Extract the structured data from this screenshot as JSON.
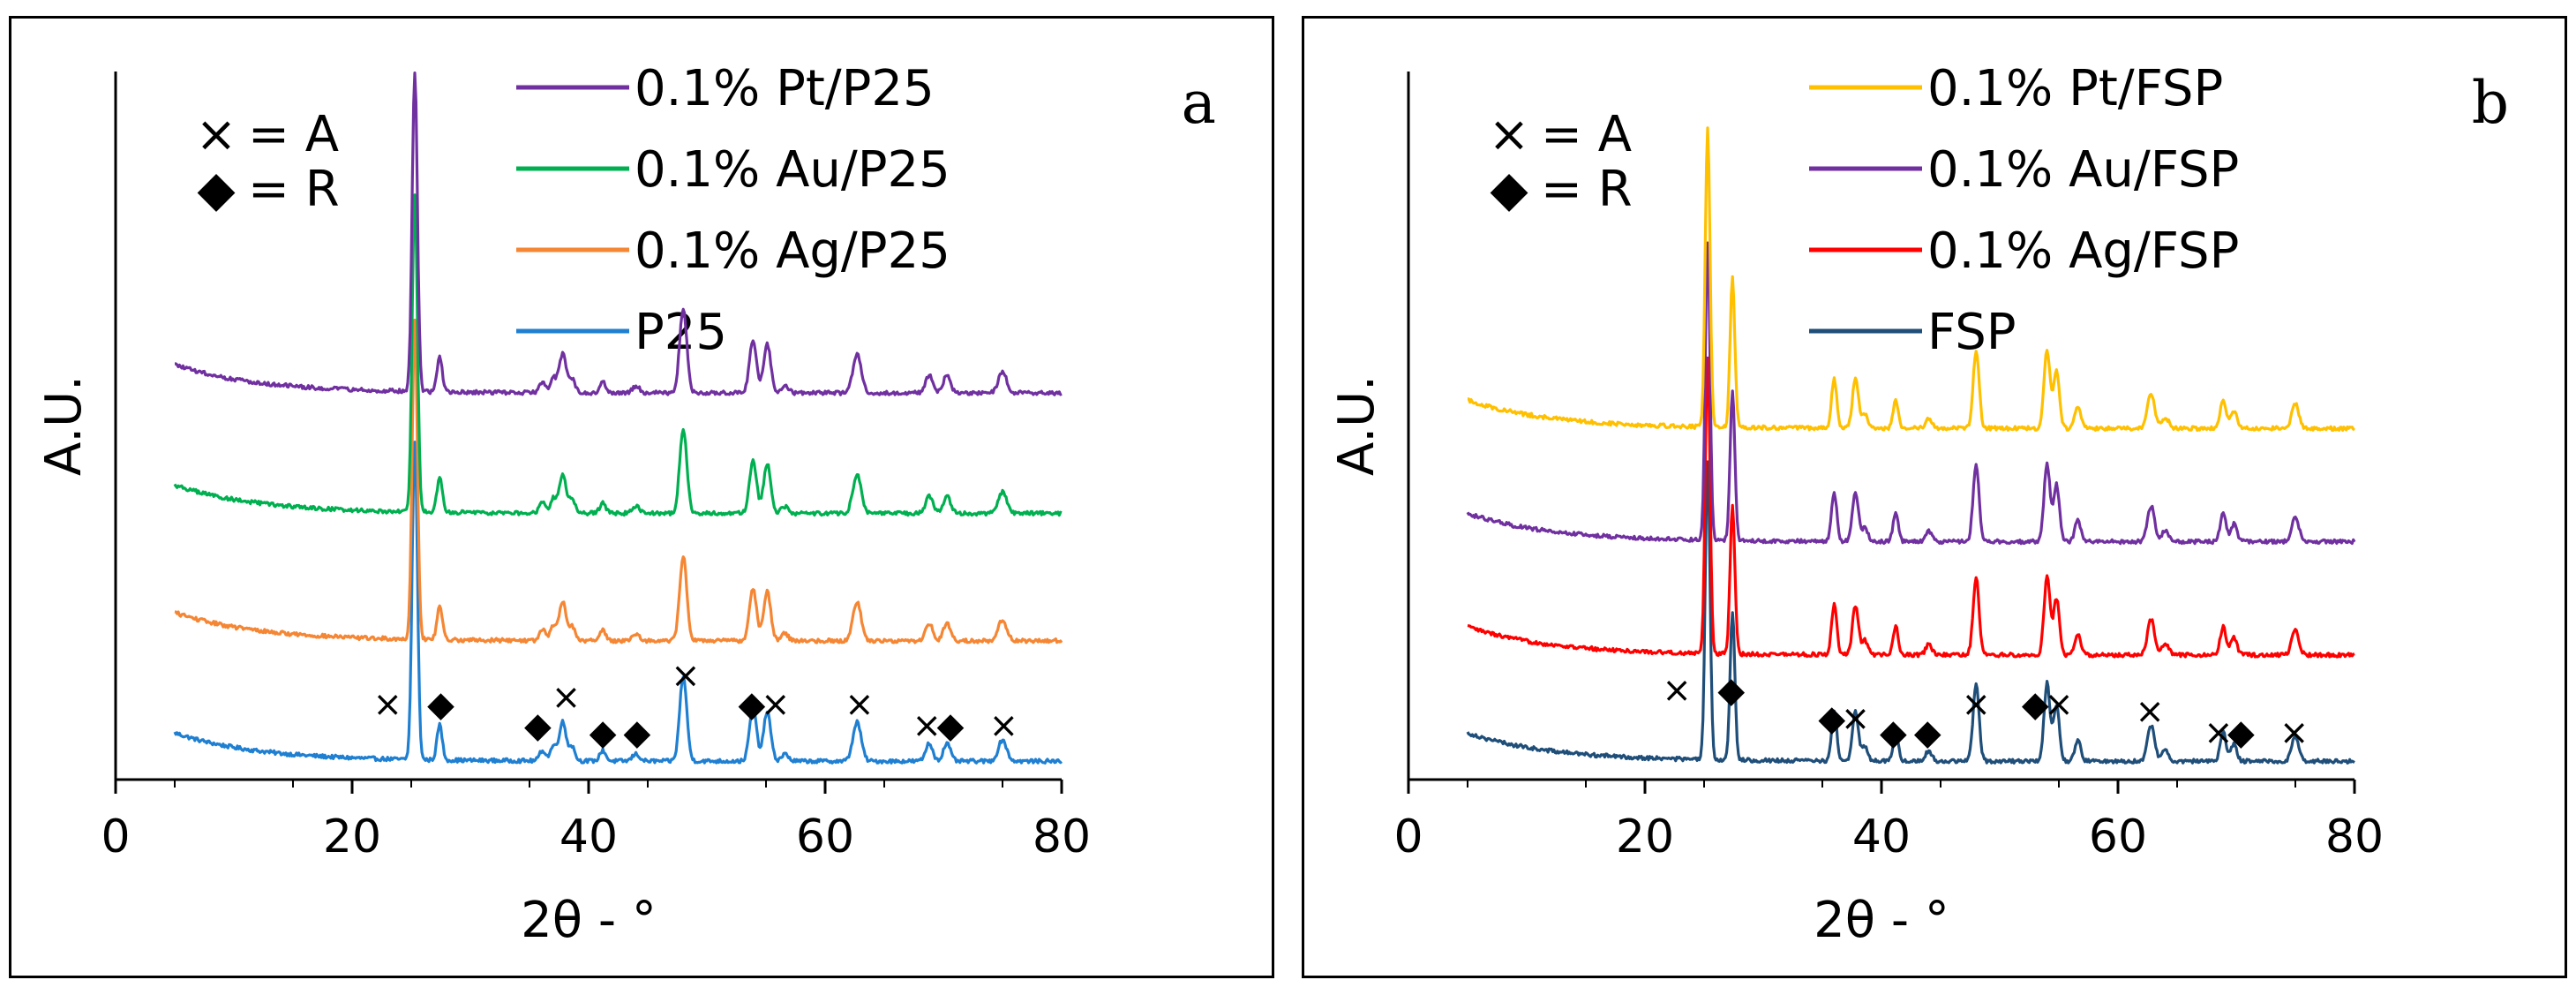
{
  "figure": {
    "description_panels": [
      "a",
      "b"
    ]
  },
  "chart_data": [
    {
      "type": "line",
      "panel_label": "a",
      "xlabel": "2θ - °",
      "ylabel": "A.U.",
      "xlim": [
        0,
        80
      ],
      "x_ticks": [
        0,
        20,
        40,
        60,
        80
      ],
      "ylim": [
        0,
        100
      ],
      "key": [
        {
          "symbol": "×",
          "label": "= A"
        },
        {
          "symbol": "◆",
          "label": "= R"
        }
      ],
      "series": [
        {
          "name": "0.1% Pt/P25",
          "color": "#7030A0",
          "offset": 53,
          "values_note": "offset stacked XRD pattern"
        },
        {
          "name": "0.1% Au/P25",
          "color": "#00B050",
          "offset": 36,
          "values_note": "offset stacked XRD pattern"
        },
        {
          "name": "0.1% Ag/P25",
          "color": "#F58634",
          "offset": 18,
          "values_note": "offset stacked XRD pattern"
        },
        {
          "name": "P25",
          "color": "#1F7FD1",
          "offset": 1,
          "values_note": "offset stacked XRD pattern"
        }
      ],
      "peaks": [
        {
          "x": 25.3,
          "h": 45,
          "w": 0.22
        },
        {
          "x": 27.4,
          "h": 5,
          "w": 0.22
        },
        {
          "x": 36.1,
          "h": 1.5,
          "w": 0.25
        },
        {
          "x": 37.0,
          "h": 2,
          "w": 0.25
        },
        {
          "x": 37.8,
          "h": 5.5,
          "w": 0.3
        },
        {
          "x": 38.6,
          "h": 2,
          "w": 0.25
        },
        {
          "x": 41.2,
          "h": 1.5,
          "w": 0.25
        },
        {
          "x": 44.0,
          "h": 1,
          "w": 0.3
        },
        {
          "x": 48.0,
          "h": 12,
          "w": 0.3
        },
        {
          "x": 53.9,
          "h": 7.5,
          "w": 0.3
        },
        {
          "x": 55.1,
          "h": 7,
          "w": 0.3
        },
        {
          "x": 56.6,
          "h": 1,
          "w": 0.3
        },
        {
          "x": 62.7,
          "h": 5.5,
          "w": 0.35
        },
        {
          "x": 68.8,
          "h": 2.5,
          "w": 0.3
        },
        {
          "x": 70.3,
          "h": 2.5,
          "w": 0.3
        },
        {
          "x": 75.0,
          "h": 3,
          "w": 0.35
        }
      ],
      "markers": [
        {
          "x": 23.0,
          "y": 9,
          "symbol": "×"
        },
        {
          "x": 27.5,
          "y": 9,
          "symbol": "◆"
        },
        {
          "x": 35.7,
          "y": 6,
          "symbol": "◆"
        },
        {
          "x": 38.1,
          "y": 10,
          "symbol": "×"
        },
        {
          "x": 41.2,
          "y": 5,
          "symbol": "◆"
        },
        {
          "x": 44.1,
          "y": 5,
          "symbol": "◆"
        },
        {
          "x": 48.2,
          "y": 13,
          "symbol": "×"
        },
        {
          "x": 53.8,
          "y": 9,
          "symbol": "◆"
        },
        {
          "x": 55.8,
          "y": 9,
          "symbol": "×"
        },
        {
          "x": 62.9,
          "y": 9,
          "symbol": "×"
        },
        {
          "x": 68.6,
          "y": 6,
          "symbol": "×"
        },
        {
          "x": 70.6,
          "y": 6,
          "symbol": "◆"
        },
        {
          "x": 75.1,
          "y": 6,
          "symbol": "×"
        }
      ]
    },
    {
      "type": "line",
      "panel_label": "b",
      "xlabel": "2θ - °",
      "ylabel": "A.U.",
      "xlim": [
        0,
        80
      ],
      "x_ticks": [
        0,
        20,
        40,
        60,
        80
      ],
      "ylim": [
        0,
        100
      ],
      "key": [
        {
          "symbol": "×",
          "label": "= A"
        },
        {
          "symbol": "◆",
          "label": "= R"
        }
      ],
      "series": [
        {
          "name": "0.1% Pt/FSP",
          "color": "#FFC000",
          "offset": 48,
          "values_note": "offset stacked XRD pattern"
        },
        {
          "name": "0.1% Au/FSP",
          "color": "#7030A0",
          "offset": 32,
          "values_note": "offset stacked XRD pattern"
        },
        {
          "name": "0.1% Ag/FSP",
          "color": "#FF0000",
          "offset": 16,
          "values_note": "offset stacked XRD pattern"
        },
        {
          "name": "FSP",
          "color": "#1F4E79",
          "offset": 1,
          "values_note": "offset stacked XRD pattern"
        }
      ],
      "peaks": [
        {
          "x": 25.3,
          "h": 42,
          "w": 0.2
        },
        {
          "x": 27.4,
          "h": 21,
          "w": 0.2
        },
        {
          "x": 36.0,
          "h": 7,
          "w": 0.22
        },
        {
          "x": 37.8,
          "h": 7,
          "w": 0.25
        },
        {
          "x": 38.6,
          "h": 2,
          "w": 0.25
        },
        {
          "x": 41.2,
          "h": 4,
          "w": 0.22
        },
        {
          "x": 44.0,
          "h": 1.5,
          "w": 0.25
        },
        {
          "x": 48.0,
          "h": 11,
          "w": 0.25
        },
        {
          "x": 54.0,
          "h": 11,
          "w": 0.25
        },
        {
          "x": 54.8,
          "h": 8,
          "w": 0.25
        },
        {
          "x": 56.6,
          "h": 3,
          "w": 0.25
        },
        {
          "x": 62.8,
          "h": 5,
          "w": 0.3
        },
        {
          "x": 64.0,
          "h": 1.5,
          "w": 0.3
        },
        {
          "x": 68.9,
          "h": 4,
          "w": 0.25
        },
        {
          "x": 69.8,
          "h": 2.5,
          "w": 0.25
        },
        {
          "x": 75.0,
          "h": 3.5,
          "w": 0.3
        }
      ],
      "markers": [
        {
          "x": 22.7,
          "y": 11,
          "symbol": "×"
        },
        {
          "x": 27.3,
          "y": 11,
          "symbol": "◆"
        },
        {
          "x": 35.8,
          "y": 7,
          "symbol": "◆"
        },
        {
          "x": 37.8,
          "y": 7,
          "symbol": "×"
        },
        {
          "x": 41.0,
          "y": 5,
          "symbol": "◆"
        },
        {
          "x": 43.9,
          "y": 5,
          "symbol": "◆"
        },
        {
          "x": 48.0,
          "y": 9,
          "symbol": "×"
        },
        {
          "x": 53.0,
          "y": 9,
          "symbol": "◆"
        },
        {
          "x": 55.0,
          "y": 9,
          "symbol": "×"
        },
        {
          "x": 62.7,
          "y": 8,
          "symbol": "×"
        },
        {
          "x": 68.5,
          "y": 5,
          "symbol": "×"
        },
        {
          "x": 70.4,
          "y": 5,
          "symbol": "◆"
        },
        {
          "x": 74.9,
          "y": 5,
          "symbol": "×"
        }
      ]
    }
  ]
}
